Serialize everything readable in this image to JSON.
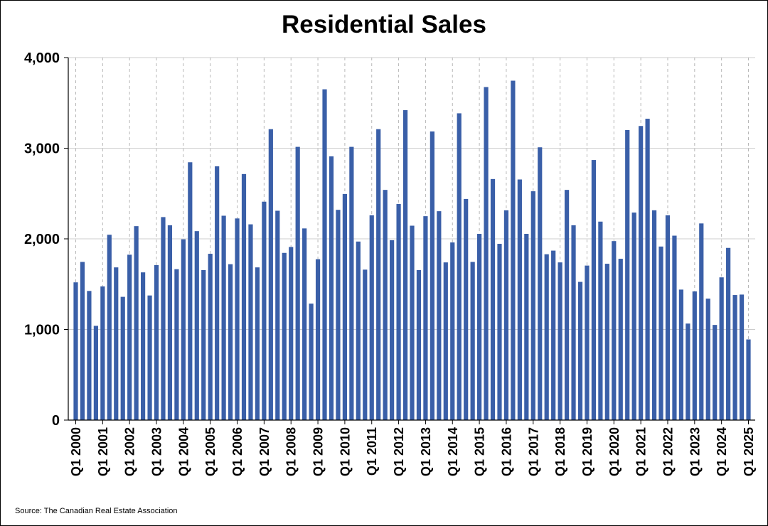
{
  "chart_data": {
    "type": "bar",
    "title": "Residential Sales",
    "xlabel": "",
    "ylabel": "",
    "ylim": [
      0,
      4000
    ],
    "yticks": [
      {
        "value": 0,
        "label": "0"
      },
      {
        "value": 1000,
        "label": "1,000"
      },
      {
        "value": 2000,
        "label": "2,000"
      },
      {
        "value": 3000,
        "label": "3,000"
      },
      {
        "value": 4000,
        "label": "4,000"
      }
    ],
    "grid": true,
    "legend": "none",
    "bar_color": "#3a5fa8",
    "xtick_labels": [
      "Q1 2000",
      "Q1 2001",
      "Q1 2002",
      "Q1 2003",
      "Q1 2004",
      "Q1 2005",
      "Q1 2006",
      "Q1 2007",
      "Q1 2008",
      "Q1 2009",
      "Q1 2010",
      "Q1 2011",
      "Q1 2012",
      "Q1 2013",
      "Q1 2014",
      "Q1 2015",
      "Q1 2016",
      "Q1 2017",
      "Q1 2018",
      "Q1 2019",
      "Q1 2020",
      "Q1 2021",
      "Q1 2022",
      "Q1 2023",
      "Q1 2024",
      "Q1 2025"
    ],
    "values": [
      1520,
      1745,
      1425,
      1040,
      1475,
      2045,
      1685,
      1360,
      1825,
      2140,
      1630,
      1375,
      1710,
      2240,
      2150,
      1665,
      1995,
      2845,
      2085,
      1655,
      1835,
      2800,
      2255,
      1720,
      2225,
      2715,
      2160,
      1685,
      2410,
      3210,
      2310,
      1845,
      1910,
      3015,
      2115,
      1285,
      1775,
      3650,
      2910,
      2320,
      2495,
      3015,
      1970,
      1660,
      2260,
      3210,
      2540,
      1985,
      2385,
      3420,
      2145,
      1655,
      2250,
      3185,
      2305,
      1740,
      1960,
      3385,
      2440,
      1745,
      2055,
      3675,
      2660,
      1945,
      2315,
      3745,
      2655,
      2055,
      2525,
      3010,
      1830,
      1870,
      1740,
      2540,
      2150,
      1525,
      1705,
      2870,
      2190,
      1725,
      1975,
      1780,
      3200,
      2290,
      3245,
      3325,
      2315,
      1915,
      2260,
      2035,
      1440,
      1065,
      1420,
      2170,
      1340,
      1050,
      1575,
      1900,
      1380,
      1385,
      890
    ]
  },
  "footer": {
    "source": "Source: The Canadian Real Estate Association"
  }
}
